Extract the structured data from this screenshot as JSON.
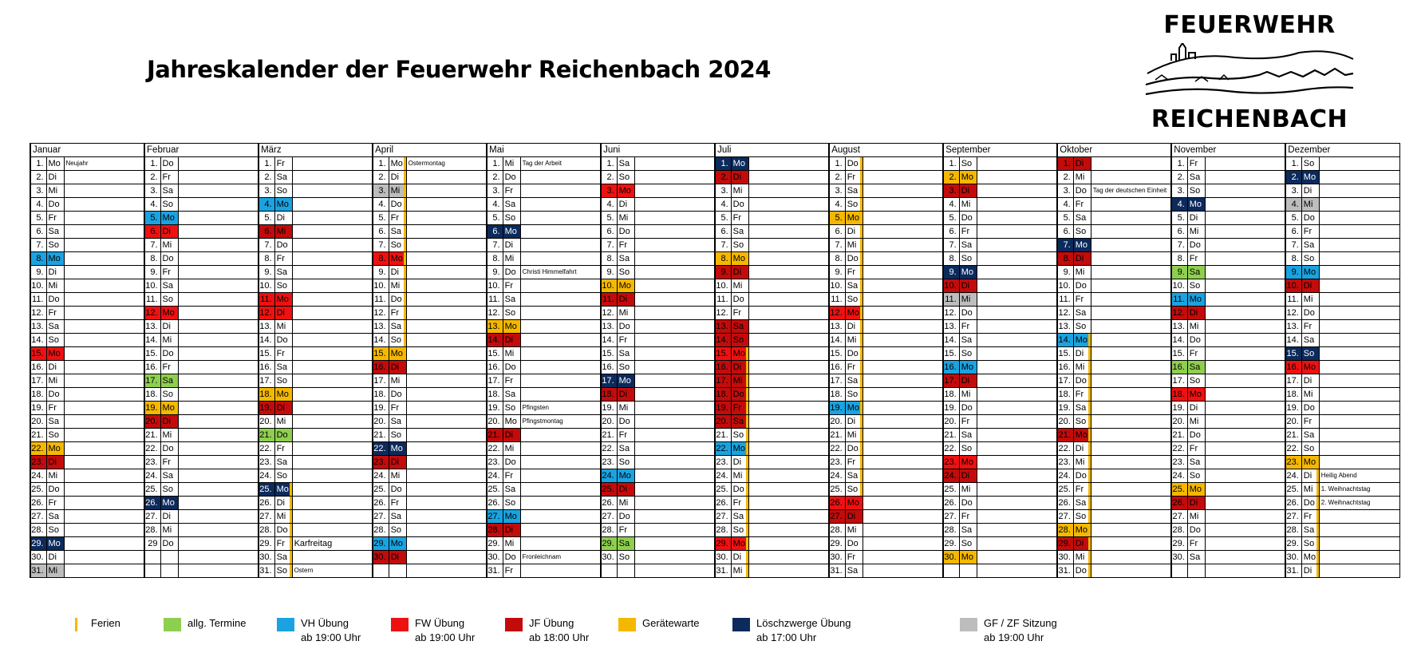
{
  "title": "Jahreskalender der Feuerwehr Reichenbach 2024",
  "logo": {
    "top": "FEUERWEHR",
    "bottom": "REICHENBACH"
  },
  "colors": {
    "A": "#8fcf4f",
    "V": "#1aa3e0",
    "F": "#ee1111",
    "J": "#c30b0b",
    "G": "#f5b800",
    "L": "#0c2a5c",
    "Z": "#bdbdbd",
    "ferien": "#f5b800"
  },
  "legend": [
    {
      "key": "ferien",
      "label": "Ferien",
      "sub": ""
    },
    {
      "key": "A",
      "label": "allg. Termine",
      "sub": ""
    },
    {
      "key": "V",
      "label": "VH Übung",
      "sub": "ab 19:00 Uhr"
    },
    {
      "key": "F",
      "label": "FW Übung",
      "sub": "ab 19:00 Uhr"
    },
    {
      "key": "J",
      "label": "JF Übung",
      "sub": "ab 18:00 Uhr"
    },
    {
      "key": "G",
      "label": "Gerätewarte",
      "sub": ""
    },
    {
      "key": "L",
      "label": "Löschzwerge Übung",
      "sub": "ab 17:00 Uhr"
    },
    {
      "key": "Z",
      "label": "GF / ZF Sitzung",
      "sub": "ab 19:00 Uhr"
    }
  ],
  "months": [
    {
      "name": "Januar",
      "days": [
        "1.",
        "2.",
        "3.",
        "4.",
        "5.",
        "6.",
        "7.",
        "8.",
        "9.",
        "10.",
        "11.",
        "12.",
        "13.",
        "14.",
        "15.",
        "16.",
        "17.",
        "18.",
        "19.",
        "20.",
        "21.",
        "22.",
        "23.",
        "24.",
        "25.",
        "26.",
        "27.",
        "28.",
        "29.",
        "30.",
        "31."
      ],
      "weekdays": [
        "Mo",
        "Di",
        "Mi",
        "Do",
        "Fr",
        "Sa",
        "So",
        "Mo",
        "Di",
        "Mi",
        "Do",
        "Fr",
        "Sa",
        "So",
        "Mo",
        "Di",
        "Mi",
        "Do",
        "Fr",
        "Sa",
        "So",
        "Mo",
        "Di",
        "Mi",
        "Do",
        "Fr",
        "Sa",
        "So",
        "Mo",
        "Di",
        "Mi"
      ],
      "colors": {
        "8": "V",
        "15": "F",
        "22": "G",
        "23": "J",
        "29": "L",
        "31": "Z"
      },
      "ferien": [],
      "notes": {
        "1": "Neujahr"
      }
    },
    {
      "name": "Februar",
      "days": [
        "1.",
        "2.",
        "3.",
        "4.",
        "5.",
        "6.",
        "7.",
        "8.",
        "9.",
        "10.",
        "11.",
        "12.",
        "13.",
        "14.",
        "15.",
        "16.",
        "17.",
        "18.",
        "19.",
        "20.",
        "21.",
        "22.",
        "23.",
        "24.",
        "25.",
        "26.",
        "27.",
        "28.",
        "29"
      ],
      "weekdays": [
        "Do",
        "Fr",
        "Sa",
        "So",
        "Mo",
        "Di",
        "Mi",
        "Do",
        "Fr",
        "Sa",
        "So",
        "Mo",
        "Di",
        "Mi",
        "Do",
        "Fr",
        "Sa",
        "So",
        "Mo",
        "Di",
        "Mi",
        "Do",
        "Fr",
        "Sa",
        "So",
        "Mo",
        "Di",
        "Mi",
        "Do"
      ],
      "colors": {
        "5": "V",
        "6": "F",
        "12": "F",
        "17": "A",
        "19": "G",
        "20": "J",
        "26": "L"
      },
      "ferien": [],
      "notes": {}
    },
    {
      "name": "März",
      "days": [
        "1.",
        "2.",
        "3.",
        "4.",
        "5.",
        "6.",
        "7.",
        "8.",
        "9.",
        "10.",
        "11.",
        "12.",
        "13.",
        "14.",
        "15.",
        "16.",
        "17.",
        "18.",
        "19.",
        "20.",
        "21.",
        "22.",
        "23.",
        "24.",
        "25.",
        "26.",
        "27.",
        "28.",
        "29.",
        "30.",
        "31."
      ],
      "weekdays": [
        "Fr",
        "Sa",
        "So",
        "Mo",
        "Di",
        "Mi",
        "Do",
        "Fr",
        "Sa",
        "So",
        "Mo",
        "Di",
        "Mi",
        "Do",
        "Fr",
        "Sa",
        "So",
        "Mo",
        "Di",
        "Mi",
        "Do",
        "Fr",
        "Sa",
        "So",
        "Mo",
        "Di",
        "Mi",
        "Do",
        "Fr",
        "Sa",
        "So"
      ],
      "colors": {
        "4": "V",
        "6": "J",
        "11": "F",
        "12": "F",
        "18": "G",
        "19": "J",
        "21": "A",
        "25": "L"
      },
      "ferien": [
        25,
        26,
        27,
        28,
        29,
        30,
        31
      ],
      "notes": {
        "29": "Karfreitag",
        "31": "Ostern"
      }
    },
    {
      "name": "April",
      "days": [
        "1.",
        "2.",
        "3.",
        "4.",
        "5.",
        "6.",
        "7.",
        "8.",
        "9.",
        "10.",
        "11.",
        "12.",
        "13.",
        "14.",
        "15.",
        "16.",
        "17.",
        "18.",
        "19.",
        "20.",
        "21.",
        "22.",
        "23.",
        "24.",
        "25.",
        "26.",
        "27.",
        "28.",
        "29.",
        "30."
      ],
      "weekdays": [
        "Mo",
        "Di",
        "Mi",
        "Do",
        "Fr",
        "Sa",
        "So",
        "Mo",
        "Di",
        "Mi",
        "Do",
        "Fr",
        "Sa",
        "So",
        "Mo",
        "Di",
        "Mi",
        "Do",
        "Fr",
        "Sa",
        "So",
        "Mo",
        "Di",
        "Mi",
        "Do",
        "Fr",
        "Sa",
        "So",
        "Mo",
        "Di"
      ],
      "colors": {
        "3": "Z",
        "8": "F",
        "15": "G",
        "16": "J",
        "22": "L",
        "23": "J",
        "29": "V",
        "30": "J"
      },
      "ferien": [
        1,
        2,
        3,
        4,
        5,
        6,
        7,
        8,
        9,
        10,
        11,
        12,
        13,
        14
      ],
      "notes": {
        "1": "Ostermontag"
      }
    },
    {
      "name": "Mai",
      "days": [
        "1.",
        "2.",
        "3.",
        "4.",
        "5.",
        "6.",
        "7.",
        "8.",
        "9.",
        "10.",
        "11.",
        "12.",
        "13.",
        "14.",
        "15.",
        "16.",
        "17.",
        "18.",
        "19.",
        "20.",
        "21.",
        "22.",
        "23.",
        "24.",
        "25.",
        "26.",
        "27.",
        "28.",
        "29.",
        "30.",
        "31."
      ],
      "weekdays": [
        "Mi",
        "Do",
        "Fr",
        "Sa",
        "So",
        "Mo",
        "Di",
        "Mi",
        "Do",
        "Fr",
        "Sa",
        "So",
        "Mo",
        "Di",
        "Mi",
        "Do",
        "Fr",
        "Sa",
        "So",
        "Mo",
        "Di",
        "Mi",
        "Do",
        "Fr",
        "Sa",
        "So",
        "Mo",
        "Di",
        "Mi",
        "Do",
        "Fr"
      ],
      "colors": {
        "6": "L",
        "13": "G",
        "14": "J",
        "21": "J",
        "27": "V",
        "28": "J"
      },
      "ferien": [],
      "notes": {
        "1": "Tag der Arbeit",
        "9": "Christi Himmelfahrt",
        "19": "Pfingsten",
        "20": "Pfingstmontag",
        "30": "Fronleichnam"
      }
    },
    {
      "name": "Juni",
      "days": [
        "1.",
        "2.",
        "3.",
        "4.",
        "5.",
        "6.",
        "7.",
        "8.",
        "9.",
        "10.",
        "11.",
        "12.",
        "13.",
        "14.",
        "15.",
        "16.",
        "17.",
        "18.",
        "19.",
        "20.",
        "21.",
        "22.",
        "23.",
        "24.",
        "25.",
        "26.",
        "27.",
        "28.",
        "29.",
        "30."
      ],
      "weekdays": [
        "Sa",
        "So",
        "Mo",
        "Di",
        "Mi",
        "Do",
        "Fr",
        "Sa",
        "So",
        "Mo",
        "Di",
        "Mi",
        "Do",
        "Fr",
        "Sa",
        "So",
        "Mo",
        "Di",
        "Mi",
        "Do",
        "Fr",
        "Sa",
        "So",
        "Mo",
        "Di",
        "Mi",
        "Do",
        "Fr",
        "Sa",
        "So"
      ],
      "colors": {
        "3": "F",
        "10": "G",
        "11": "J",
        "17": "L",
        "18": "J",
        "24": "V",
        "25": "J",
        "29": "A"
      },
      "ferien": [],
      "notes": {}
    },
    {
      "name": "Juli",
      "days": [
        "1.",
        "2.",
        "3.",
        "4.",
        "5.",
        "6.",
        "7.",
        "8.",
        "9.",
        "10.",
        "11.",
        "12.",
        "13.",
        "14.",
        "15.",
        "16.",
        "17.",
        "18.",
        "19.",
        "20.",
        "21.",
        "22.",
        "23.",
        "24.",
        "25.",
        "26.",
        "27.",
        "28.",
        "29.",
        "30.",
        "31."
      ],
      "weekdays": [
        "Mo",
        "Di",
        "Mi",
        "Do",
        "Fr",
        "Sa",
        "So",
        "Mo",
        "Di",
        "Mi",
        "Do",
        "Fr",
        "Sa",
        "So",
        "Mo",
        "Di",
        "Mi",
        "Do",
        "Fr",
        "Sa",
        "So",
        "Mo",
        "Di",
        "Mi",
        "Do",
        "Fr",
        "Sa",
        "So",
        "Mo",
        "Di",
        "Mi"
      ],
      "colors": {
        "1": "L",
        "2": "J",
        "8": "G",
        "9": "J",
        "13": "J",
        "14": "J",
        "15": "F",
        "16": "J",
        "17": "J",
        "18": "J",
        "19": "J",
        "20": "J",
        "22": "V",
        "29": "F"
      },
      "ferien": [
        15,
        16,
        17,
        18,
        19,
        20,
        21,
        22,
        23,
        24,
        25,
        26,
        27,
        28,
        29,
        30,
        31
      ],
      "notes": {}
    },
    {
      "name": "August",
      "days": [
        "1.",
        "2.",
        "3.",
        "4.",
        "5.",
        "6.",
        "7.",
        "8.",
        "9.",
        "10.",
        "11.",
        "12.",
        "13.",
        "14.",
        "15.",
        "16.",
        "17.",
        "18.",
        "19.",
        "20.",
        "21.",
        "22.",
        "23.",
        "24.",
        "25.",
        "26.",
        "27.",
        "28.",
        "29.",
        "30.",
        "31."
      ],
      "weekdays": [
        "Do",
        "Fr",
        "Sa",
        "So",
        "Mo",
        "Di",
        "Mi",
        "Do",
        "Fr",
        "Sa",
        "So",
        "Mo",
        "Di",
        "Mi",
        "Do",
        "Fr",
        "Sa",
        "So",
        "Mo",
        "Di",
        "Mi",
        "Do",
        "Fr",
        "Sa",
        "So",
        "Mo",
        "Di",
        "Mi",
        "Do",
        "Fr",
        "Sa"
      ],
      "colors": {
        "5": "G",
        "12": "F",
        "19": "V",
        "26": "F",
        "27": "J"
      },
      "ferien": [
        1,
        2,
        3,
        4,
        5,
        6,
        7,
        8,
        9,
        10,
        11,
        12,
        13,
        14,
        15,
        16,
        17,
        18,
        19,
        20,
        21,
        22,
        23,
        24,
        25
      ],
      "notes": {}
    },
    {
      "name": "September",
      "days": [
        "1.",
        "2.",
        "3.",
        "4.",
        "5.",
        "6.",
        "7.",
        "8.",
        "9.",
        "10.",
        "11.",
        "12.",
        "13.",
        "14.",
        "15.",
        "16.",
        "17.",
        "18.",
        "19.",
        "20.",
        "21.",
        "22.",
        "23.",
        "24.",
        "25.",
        "26.",
        "27.",
        "28.",
        "29.",
        "30."
      ],
      "weekdays": [
        "So",
        "Mo",
        "Di",
        "Mi",
        "Do",
        "Fr",
        "Sa",
        "So",
        "Mo",
        "Di",
        "Mi",
        "Do",
        "Fr",
        "Sa",
        "So",
        "Mo",
        "Di",
        "Mi",
        "Do",
        "Fr",
        "Sa",
        "So",
        "Mo",
        "Di",
        "Mi",
        "Do",
        "Fr",
        "Sa",
        "So",
        "Mo"
      ],
      "colors": {
        "2": "G",
        "3": "J",
        "9": "L",
        "10": "J",
        "11": "Z",
        "16": "V",
        "17": "J",
        "23": "F",
        "24": "J",
        "30": "G"
      },
      "ferien": [],
      "notes": {}
    },
    {
      "name": "Oktober",
      "days": [
        "1.",
        "2.",
        "3.",
        "4.",
        "5.",
        "6.",
        "7.",
        "8.",
        "9.",
        "10.",
        "11.",
        "12.",
        "13.",
        "14.",
        "15.",
        "16.",
        "17.",
        "18.",
        "19.",
        "20.",
        "21.",
        "22.",
        "23.",
        "24.",
        "25.",
        "26.",
        "27.",
        "28.",
        "29.",
        "30.",
        "31."
      ],
      "weekdays": [
        "Di",
        "Mi",
        "Do",
        "Fr",
        "Sa",
        "So",
        "Mo",
        "Di",
        "Mi",
        "Do",
        "Fr",
        "Sa",
        "So",
        "Mo",
        "Di",
        "Mi",
        "Do",
        "Fr",
        "Sa",
        "So",
        "Mo",
        "Di",
        "Mi",
        "Do",
        "Fr",
        "Sa",
        "So",
        "Mo",
        "Di",
        "Mi",
        "Do"
      ],
      "colors": {
        "1": "J",
        "7": "L",
        "8": "J",
        "14": "V",
        "21": "J",
        "28": "G",
        "29": "J"
      },
      "ferien": [
        14,
        15,
        16,
        17,
        18,
        19,
        20,
        21,
        22,
        23,
        24,
        25,
        26,
        27,
        28,
        29,
        30,
        31
      ],
      "notes": {
        "3": "Tag der deutschen Einheit"
      }
    },
    {
      "name": "November",
      "days": [
        "1.",
        "2.",
        "3.",
        "4.",
        "5.",
        "6.",
        "7.",
        "8.",
        "9.",
        "10.",
        "11.",
        "12.",
        "13.",
        "14.",
        "15.",
        "16.",
        "17.",
        "18.",
        "19.",
        "20.",
        "21.",
        "22.",
        "23.",
        "24.",
        "25.",
        "26.",
        "27.",
        "28.",
        "29.",
        "30."
      ],
      "weekdays": [
        "Fr",
        "Sa",
        "So",
        "Mo",
        "Di",
        "Mi",
        "Do",
        "Fr",
        "Sa",
        "So",
        "Mo",
        "Di",
        "Mi",
        "Do",
        "Fr",
        "Sa",
        "So",
        "Mo",
        "Di",
        "Mi",
        "Do",
        "Fr",
        "Sa",
        "So",
        "Mo",
        "Di",
        "Mi",
        "Do",
        "Fr",
        "Sa"
      ],
      "colors": {
        "4": "L",
        "9": "A",
        "11": "V",
        "12": "J",
        "16": "A",
        "18": "F",
        "25": "G",
        "26": "J"
      },
      "ferien": [],
      "notes": {}
    },
    {
      "name": "Dezember",
      "days": [
        "1.",
        "2.",
        "3.",
        "4.",
        "5.",
        "6.",
        "7.",
        "8.",
        "9.",
        "10.",
        "11.",
        "12.",
        "13.",
        "14.",
        "15.",
        "16.",
        "17.",
        "18.",
        "19.",
        "20.",
        "21.",
        "22.",
        "23.",
        "24.",
        "25.",
        "26.",
        "27.",
        "28.",
        "29.",
        "30.",
        "31."
      ],
      "weekdays": [
        "So",
        "Mo",
        "Di",
        "Mi",
        "Do",
        "Fr",
        "Sa",
        "So",
        "Mo",
        "Di",
        "Mi",
        "Do",
        "Fr",
        "Sa",
        "So",
        "Mo",
        "Di",
        "Mi",
        "Do",
        "Fr",
        "Sa",
        "So",
        "Mo",
        "Di",
        "Mi",
        "Do",
        "Fr",
        "Sa",
        "So",
        "Mo",
        "Di"
      ],
      "colors": {
        "2": "L",
        "4": "Z",
        "9": "V",
        "10": "J",
        "15": "L",
        "16": "F",
        "23": "G"
      },
      "ferien": [
        23,
        24,
        25,
        26,
        27,
        28,
        29,
        30,
        31
      ],
      "notes": {
        "24": "Heilig Abend",
        "25": "1. Weihnachtstag",
        "26": "2. Weihnachtstag"
      }
    }
  ]
}
